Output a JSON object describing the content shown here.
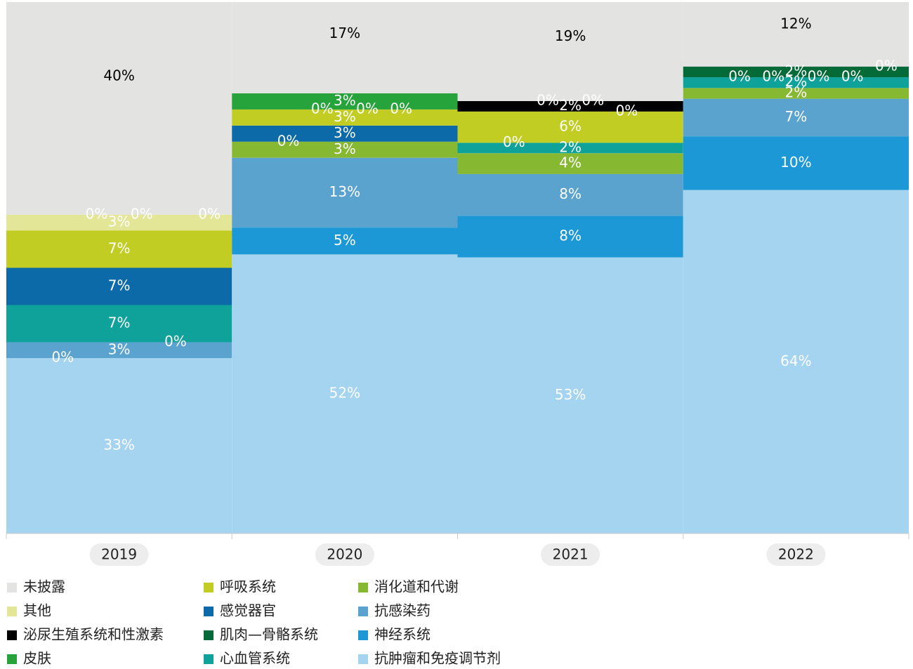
{
  "chart_data": {
    "type": "stacked_bar",
    "categories": [
      "2019",
      "2020",
      "2021",
      "2022"
    ],
    "series": [
      {
        "name": "未披露",
        "color": "#e3e3e1",
        "values": [
          40,
          17,
          19,
          12
        ]
      },
      {
        "name": "其他",
        "color": "#e3e597",
        "values": [
          3,
          0,
          0,
          0
        ]
      },
      {
        "name": "泌尿生殖系统和性激素",
        "color": "#000000",
        "values": [
          0,
          0,
          2,
          0
        ]
      },
      {
        "name": "皮肤",
        "color": "#26a33a",
        "values": [
          0,
          3,
          0,
          0
        ]
      },
      {
        "name": "呼吸系统",
        "color": "#c1cd23",
        "values": [
          7,
          3,
          6,
          0
        ]
      },
      {
        "name": "感觉器官",
        "color": "#0d6aa8",
        "values": [
          7,
          3,
          0,
          0
        ]
      },
      {
        "name": "肌肉—骨骼系统",
        "color": "#046a38",
        "values": [
          0,
          0,
          0,
          2
        ]
      },
      {
        "name": "心血管系统",
        "color": "#0fa29a",
        "values": [
          7,
          0,
          2,
          2
        ]
      },
      {
        "name": "消化道和代谢",
        "color": "#86b832",
        "values": [
          0,
          3,
          4,
          2
        ]
      },
      {
        "name": "抗感染药",
        "color": "#5ba3cf",
        "values": [
          3,
          13,
          8,
          7
        ]
      },
      {
        "name": "神经系统",
        "color": "#1c98d6",
        "values": [
          0,
          5,
          8,
          10
        ]
      },
      {
        "name": "抗肿瘤和免疫调节剂",
        "color": "#a5d4f1",
        "values": [
          33,
          52,
          53,
          64
        ]
      }
    ],
    "value_labels": [
      [
        "40%",
        "17%",
        "19%",
        "12%"
      ],
      [
        "3%",
        "0%",
        "0%",
        "0%"
      ],
      [
        "0%",
        "0%",
        "2%",
        "0%"
      ],
      [
        "0%",
        "3%",
        "0%",
        "0%"
      ],
      [
        "7%",
        "3%",
        "6%",
        "0%"
      ],
      [
        "7%",
        "3%",
        "0%",
        "0%"
      ],
      [
        "0%",
        "0%",
        "0%",
        "2%"
      ],
      [
        "7%",
        "0%",
        "2%",
        "2%"
      ],
      [
        "0%",
        "3%",
        "4%",
        "2%"
      ],
      [
        "3%",
        "13%",
        "8%",
        "7%"
      ],
      [
        "0%",
        "5%",
        "8%",
        "10%"
      ],
      [
        "33%",
        "52%",
        "53%",
        "64%"
      ]
    ],
    "legend": "bottom"
  }
}
